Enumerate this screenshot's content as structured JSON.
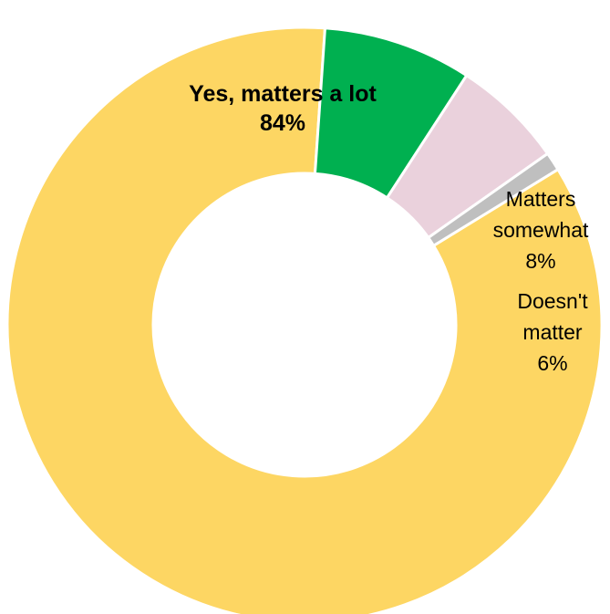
{
  "chart_data": {
    "type": "pie",
    "subtype": "donut",
    "slices": [
      {
        "label": "Yes, matters a lot",
        "value": 84,
        "value_label": "84%",
        "color": "#FDD663",
        "bold": true
      },
      {
        "label": "Matters somewhat",
        "value": 8,
        "value_label": "8%",
        "color": "#00B050",
        "bold": false
      },
      {
        "label": "Doesn't matter",
        "value": 6,
        "value_label": "6%",
        "color": "#EAD1DC",
        "bold": false
      },
      {
        "label": "",
        "value": 1,
        "value_label": "",
        "color": "#BFBFBF",
        "bold": false
      }
    ]
  }
}
